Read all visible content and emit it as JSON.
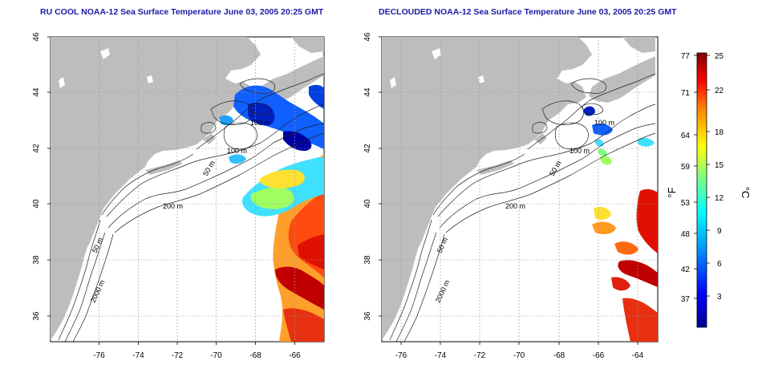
{
  "panels": [
    {
      "title": "RU COOL NOAA-12 Sea Surface Temperature June 03, 2005 20:25 GMT",
      "contour_labels": [
        "100 m",
        "100 m",
        "50 m",
        "200 m",
        "50 m",
        "2000 m"
      ]
    },
    {
      "title": "DECLOUDED NOAA-12 Sea Surface Temperature June 03, 2005 20:25 GMT",
      "contour_labels": [
        "100 m",
        "100 m",
        "50 m",
        "200 m",
        "50 m",
        "2000 m"
      ]
    }
  ],
  "axes": {
    "lon_ticks": [
      "-76",
      "-74",
      "-72",
      "-70",
      "-68",
      "-66",
      "-64"
    ],
    "lat_ticks": [
      "36",
      "38",
      "40",
      "42",
      "44",
      "46"
    ]
  },
  "colorbar": {
    "fahrenheit_label": "°F",
    "celsius_label": "°C",
    "fahrenheit_ticks": [
      "77",
      "71",
      "64",
      "59",
      "53",
      "48",
      "42",
      "37"
    ],
    "celsius_ticks": [
      "25",
      "22",
      "18",
      "15",
      "12",
      "9",
      "6",
      "3"
    ]
  },
  "colors": {
    "land": "#bdbdbd",
    "title": "#1a1aa6",
    "grid": "#9a9a9a"
  }
}
